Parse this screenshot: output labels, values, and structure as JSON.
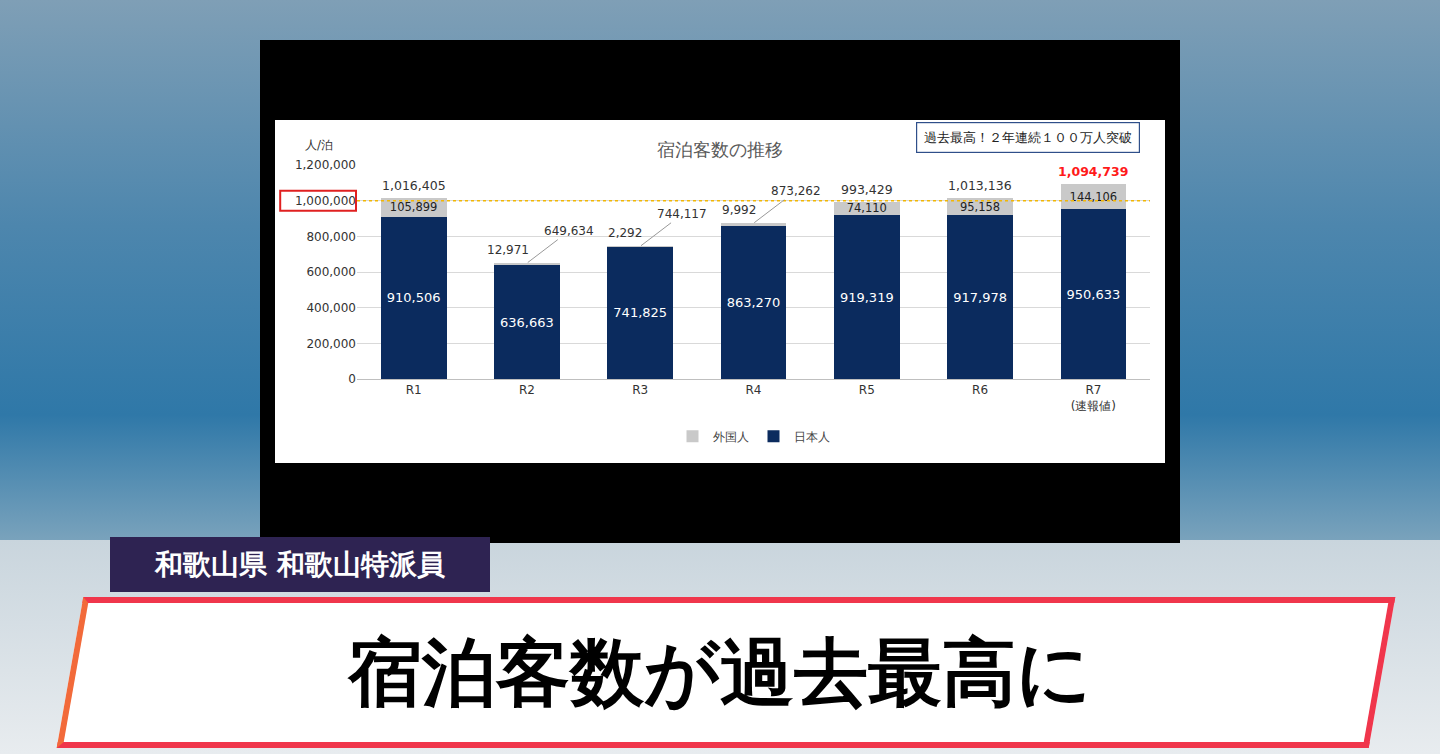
{
  "chart_data": {
    "type": "bar",
    "stacked": true,
    "title": "宿泊客数の推移",
    "y_label": "人/泊",
    "categories": [
      "R1",
      "R2",
      "R3",
      "R4",
      "R5",
      "R6",
      "R7\n(速報値)"
    ],
    "series": [
      {
        "name": "日本人",
        "color": "#0b2b5e",
        "values": [
          910506,
          636663,
          741825,
          863270,
          919319,
          917978,
          950633
        ],
        "value_labels": [
          "910,506",
          "636,663",
          "741,825",
          "863,270",
          "919,319",
          "917,978",
          "950,633"
        ]
      },
      {
        "name": "外国人",
        "color": "#c9c9c9",
        "values": [
          105899,
          12971,
          2292,
          9992,
          74110,
          95158,
          144106
        ],
        "value_labels": [
          "105,899",
          "12,971",
          "2,292",
          "9,992",
          "74,110",
          "95,158",
          "144,106"
        ]
      }
    ],
    "totals": {
      "values": [
        1016405,
        649634,
        744117,
        873262,
        993429,
        1013136,
        1094739
      ],
      "value_labels": [
        "1,016,405",
        "649,634",
        "744,117",
        "873,262",
        "993,429",
        "1,013,136",
        "1,094,739"
      ]
    },
    "reference_line": 1000000,
    "annotations": [
      {
        "text": "過去最高！２年連続１００万人突破"
      }
    ],
    "ylim": [
      0,
      1200000
    ],
    "yticks": [
      0,
      {
        "value": 200000,
        "label": "200,000"
      },
      {
        "value": 400000,
        "label": "400,000"
      },
      {
        "value": 600000,
        "label": "600,000"
      },
      {
        "value": 800000,
        "label": "800,000"
      },
      {
        "value": 1000000,
        "label": "1,000,000"
      },
      {
        "value": 1200000,
        "label": "1,200,000"
      }
    ],
    "grid": true,
    "legend": "bottom",
    "data_labels": true
  },
  "banner": {
    "reporter": "和歌山県 和歌山特派員",
    "headline": "宿泊客数が過去最高に"
  }
}
